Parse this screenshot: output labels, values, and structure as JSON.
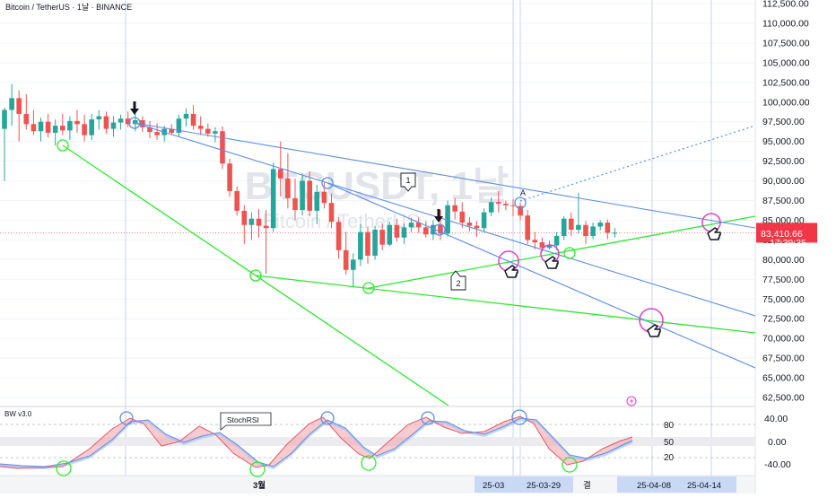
{
  "header": {
    "symbol_line": "Bitcoin / TetherUS · 1날 · BINANCE"
  },
  "watermark": {
    "main": "BTCUSDT, 1날",
    "sub": "Bitcoin / TetherUS"
  },
  "price_axis": {
    "ticks": [
      "112,500.00",
      "110,000.00",
      "107,500.00",
      "105,000.00",
      "102,500.00",
      "100,000.00",
      "97,500.00",
      "95,000.00",
      "92,500.00",
      "90,000.00",
      "87,500.00",
      "85,000.00",
      "82,500.00",
      "80,000.00",
      "77,500.00",
      "75,000.00",
      "72,500.00",
      "70,000.00",
      "67,500.00",
      "65,000.00",
      "62,500.00"
    ],
    "last_price": "83,410.66",
    "countdown": "17:29:35",
    "last_price_color": "#f23645"
  },
  "indicator": {
    "name": "BW v3.0",
    "ticks": [
      "40.00",
      "0.00",
      "-40.00"
    ],
    "levels": [
      "80",
      "50",
      "20"
    ],
    "callout": "StochRSI"
  },
  "time_axis": {
    "month_label": "3월",
    "dates": [
      "25-03",
      "25-03-29",
      "25-04-08",
      "25-04-14"
    ],
    "extra": "결"
  },
  "annotations": {
    "wave_1": "1",
    "wave_2": "2",
    "wave_a": "A"
  },
  "chart_data": {
    "type": "candlestick",
    "ylim": [
      62500,
      112500
    ],
    "bars": [
      [
        96600,
        99300,
        90000,
        99000
      ],
      [
        99000,
        102300,
        97000,
        100500
      ],
      [
        100500,
        101500,
        95000,
        98500
      ],
      [
        98500,
        101000,
        96500,
        97200
      ],
      [
        97200,
        99000,
        95800,
        96300
      ],
      [
        96300,
        98000,
        95000,
        97500
      ],
      [
        97500,
        98500,
        95500,
        96100
      ],
      [
        96100,
        97800,
        94500,
        97000
      ],
      [
        97000,
        98500,
        95800,
        96400
      ],
      [
        96400,
        98200,
        95200,
        97600
      ],
      [
        97600,
        99000,
        96100,
        97200
      ],
      [
        97200,
        98400,
        95000,
        95800
      ],
      [
        95800,
        98500,
        95200,
        97800
      ],
      [
        97800,
        99000,
        96500,
        98200
      ],
      [
        98200,
        98800,
        96000,
        96600
      ],
      [
        96600,
        98200,
        95600,
        97400
      ],
      [
        97400,
        98400,
        96500,
        97900
      ],
      [
        97900,
        98800,
        96800,
        97200
      ],
      [
        97200,
        98500,
        96300,
        97700
      ],
      [
        97700,
        98200,
        96200,
        96800
      ],
      [
        96800,
        97600,
        95400,
        96200
      ],
      [
        96200,
        97300,
        95200,
        95800
      ],
      [
        95800,
        97000,
        95000,
        96600
      ],
      [
        96600,
        97200,
        95800,
        96100
      ],
      [
        96100,
        98400,
        95600,
        97900
      ],
      [
        97900,
        99200,
        96900,
        98500
      ],
      [
        98500,
        99600,
        96500,
        97000
      ],
      [
        97000,
        98200,
        95800,
        96600
      ],
      [
        96600,
        97300,
        95600,
        96000
      ],
      [
        96000,
        96800,
        94900,
        96300
      ],
      [
        96300,
        96900,
        91500,
        92200
      ],
      [
        92200,
        92800,
        88000,
        88700
      ],
      [
        88700,
        89300,
        85600,
        86200
      ],
      [
        86200,
        86900,
        82000,
        84400
      ],
      [
        84400,
        86000,
        82500,
        85200
      ],
      [
        85200,
        86400,
        82800,
        84300
      ],
      [
        84300,
        86300,
        78200,
        84000
      ],
      [
        84000,
        92300,
        83500,
        91500
      ],
      [
        91500,
        95000,
        88000,
        90300
      ],
      [
        90300,
        93500,
        86500,
        87800
      ],
      [
        87800,
        90300,
        85000,
        86300
      ],
      [
        86300,
        91000,
        85600,
        90000
      ],
      [
        90000,
        91200,
        85500,
        86200
      ],
      [
        86200,
        89500,
        84500,
        88600
      ],
      [
        88600,
        89800,
        86500,
        87200
      ],
      [
        87200,
        88400,
        84000,
        84800
      ],
      [
        84800,
        85400,
        80100,
        81200
      ],
      [
        81200,
        83500,
        78100,
        78700
      ],
      [
        78700,
        80800,
        76600,
        80000
      ],
      [
        80000,
        84500,
        79200,
        83500
      ],
      [
        83500,
        84200,
        79500,
        80500
      ],
      [
        80500,
        84300,
        80000,
        83800
      ],
      [
        83800,
        84600,
        81200,
        81900
      ],
      [
        81900,
        84800,
        81700,
        84400
      ],
      [
        84400,
        85200,
        82300,
        82800
      ],
      [
        82800,
        84600,
        82000,
        84100
      ],
      [
        84100,
        85300,
        83500,
        84700
      ],
      [
        84700,
        85400,
        83400,
        84100
      ],
      [
        84100,
        84900,
        82800,
        83200
      ],
      [
        83200,
        85000,
        82500,
        84400
      ],
      [
        84400,
        86300,
        82500,
        83300
      ],
      [
        83300,
        87500,
        82900,
        86900
      ],
      [
        86900,
        87800,
        85100,
        86100
      ],
      [
        86100,
        87300,
        84000,
        84700
      ],
      [
        84700,
        85400,
        83600,
        84300
      ],
      [
        84300,
        84900,
        82900,
        84000
      ],
      [
        84000,
        86500,
        83600,
        86000
      ],
      [
        86000,
        87900,
        85500,
        87300
      ],
      [
        87300,
        88700,
        86000,
        87100
      ],
      [
        87100,
        87500,
        86300,
        86900
      ],
      [
        86900,
        87700,
        85500,
        86800
      ],
      [
        86800,
        87200,
        85000,
        85600
      ],
      [
        85600,
        86300,
        82000,
        82500
      ],
      [
        82500,
        83500,
        81300,
        82200
      ],
      [
        82200,
        82800,
        81000,
        81500
      ],
      [
        81500,
        82400,
        81300,
        81800
      ],
      [
        81800,
        83500,
        81200,
        83000
      ],
      [
        83000,
        85500,
        82500,
        85200
      ],
      [
        85200,
        86000,
        83000,
        83800
      ],
      [
        83800,
        88500,
        83300,
        84400
      ],
      [
        84400,
        84900,
        82000,
        83000
      ],
      [
        83000,
        84700,
        82600,
        84200
      ],
      [
        84200,
        85000,
        83700,
        84700
      ],
      [
        84700,
        85100,
        82600,
        83400
      ],
      [
        83400,
        84000,
        82800,
        83410
      ]
    ]
  }
}
